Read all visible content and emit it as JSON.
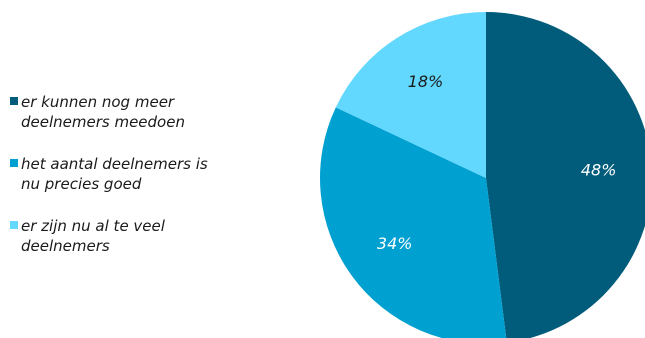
{
  "chart_data": {
    "type": "pie",
    "categories": [
      "er kunnen nog meer\ndeelnemers meedoen",
      "het aantal deelnemers is\nnu precies goed",
      "er zijn nu al te veel\ndeelnemers"
    ],
    "values": [
      48,
      34,
      18
    ],
    "data_labels": [
      "48%",
      "34%",
      "18%"
    ],
    "colors": [
      "#005C7A",
      "#00A0D1",
      "#63D8FF"
    ],
    "label_colors": [
      "#ffffff",
      "#ffffff",
      "#1a1a1a"
    ],
    "legend_placement": "left",
    "start_angle": "top",
    "direction": "clockwise"
  }
}
